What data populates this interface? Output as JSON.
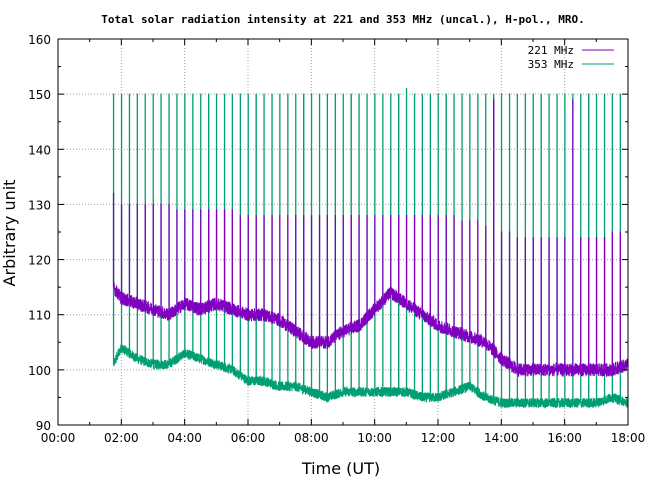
{
  "chart_data": {
    "type": "line",
    "title": "Total solar radiation intensity at 221 and 353 MHz (uncal.), H-pol., MRO.",
    "xlabel": "Time (UT)",
    "ylabel": "Arbitrary unit",
    "xlim": [
      0,
      18
    ],
    "ylim": [
      90,
      160
    ],
    "x_ticks": [
      {
        "value": 0,
        "label": "00:00"
      },
      {
        "value": 2,
        "label": "02:00"
      },
      {
        "value": 4,
        "label": "04:00"
      },
      {
        "value": 6,
        "label": "06:00"
      },
      {
        "value": 8,
        "label": "08:00"
      },
      {
        "value": 10,
        "label": "10:00"
      },
      {
        "value": 12,
        "label": "12:00"
      },
      {
        "value": 14,
        "label": "14:00"
      },
      {
        "value": 16,
        "label": "16:00"
      },
      {
        "value": 18,
        "label": "18:00"
      }
    ],
    "y_ticks": [
      {
        "value": 90,
        "label": "90"
      },
      {
        "value": 100,
        "label": "100"
      },
      {
        "value": 110,
        "label": "110"
      },
      {
        "value": 120,
        "label": "120"
      },
      {
        "value": 130,
        "label": "130"
      },
      {
        "value": 140,
        "label": "140"
      },
      {
        "value": 150,
        "label": "150"
      },
      {
        "value": 160,
        "label": "160"
      }
    ],
    "grid": true,
    "legend_position": "top-right",
    "calibration_spike_interval_h": 0.25,
    "series": [
      {
        "name": "221 MHz",
        "color": "#8000c0",
        "x": [
          1.75,
          2.0,
          2.5,
          3.0,
          3.5,
          4.0,
          4.5,
          5.0,
          5.5,
          6.0,
          6.5,
          7.0,
          7.5,
          8.0,
          8.5,
          9.0,
          9.5,
          10.0,
          10.5,
          11.0,
          11.5,
          12.0,
          12.5,
          13.0,
          13.5,
          14.0,
          14.5,
          15.0,
          15.5,
          16.0,
          16.5,
          17.0,
          17.5,
          18.0
        ],
        "baseline": [
          115,
          113,
          112,
          111,
          110,
          112,
          111,
          112,
          111,
          110,
          110,
          109,
          107,
          105,
          105,
          107,
          108,
          111,
          114,
          112,
          110,
          108,
          107,
          106,
          105,
          102,
          100,
          100,
          100,
          100,
          100,
          100,
          100,
          101
        ],
        "spike_peaks": [
          132,
          130,
          130,
          130,
          130,
          130,
          130,
          130,
          129,
          129,
          129,
          129,
          129,
          129,
          129,
          129,
          128,
          128,
          128,
          128,
          128,
          128,
          128,
          128,
          128,
          128,
          128,
          128,
          128,
          128,
          128,
          128,
          128,
          128,
          128,
          128,
          128,
          128,
          128,
          128,
          128,
          128,
          128,
          128,
          127,
          127,
          127,
          126,
          149,
          125,
          125,
          124,
          124,
          124,
          124,
          124,
          124,
          124,
          149,
          124,
          124,
          124,
          124,
          125,
          125,
          126
        ]
      },
      {
        "name": "353 MHz",
        "color": "#009e73",
        "x": [
          1.75,
          2.0,
          2.5,
          3.0,
          3.5,
          4.0,
          4.5,
          5.0,
          5.5,
          6.0,
          6.5,
          7.0,
          7.5,
          8.0,
          8.5,
          9.0,
          9.5,
          10.0,
          10.5,
          11.0,
          11.5,
          12.0,
          12.5,
          13.0,
          13.5,
          14.0,
          14.5,
          15.0,
          15.5,
          16.0,
          16.5,
          17.0,
          17.5,
          18.0
        ],
        "baseline": [
          101,
          104,
          102,
          101,
          101,
          103,
          102,
          101,
          100,
          98,
          98,
          97,
          97,
          96,
          95,
          96,
          96,
          96,
          96,
          96,
          95,
          95,
          96,
          97,
          95,
          94,
          94,
          94,
          94,
          94,
          94,
          94,
          95,
          94
        ],
        "spike_peaks": [
          150,
          150,
          150,
          150,
          150,
          150,
          150,
          150,
          150,
          150,
          150,
          150,
          150,
          150,
          150,
          150,
          150,
          150,
          150,
          150,
          150,
          150,
          150,
          150,
          150,
          150,
          150,
          150,
          150,
          150,
          150,
          150,
          150,
          150,
          150,
          150,
          150,
          151,
          150,
          150,
          150,
          150,
          150,
          150,
          150,
          150,
          150,
          150,
          150,
          150,
          150,
          150,
          150,
          150,
          150,
          150,
          150,
          150,
          150,
          150,
          150,
          150,
          150,
          150,
          150,
          150
        ]
      }
    ]
  }
}
